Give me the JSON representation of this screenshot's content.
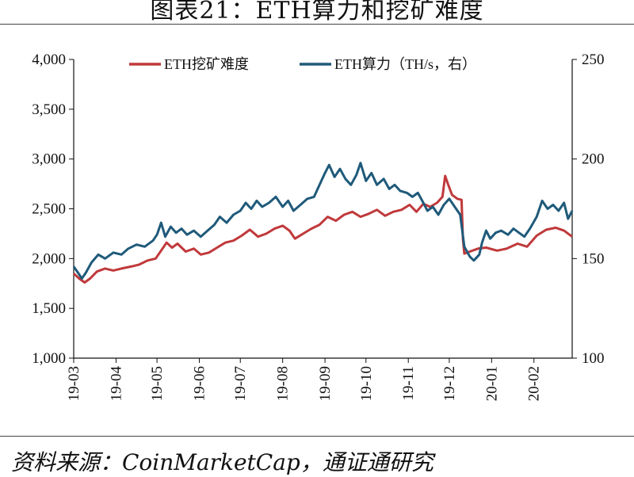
{
  "title": "图表21：ETH算力和挖矿难度",
  "source": "资料来源：CoinMarketCap，通证通研究",
  "chart_data": {
    "type": "line",
    "x_ticks": [
      "19-03",
      "19-04",
      "19-05",
      "19-06",
      "19-07",
      "19-08",
      "19-09",
      "19-10",
      "19-11",
      "19-12",
      "20-01",
      "20-02"
    ],
    "y_left": {
      "range": [
        1000,
        4000
      ],
      "ticks": [
        "1,000",
        "1,500",
        "2,000",
        "2,500",
        "3,000",
        "3,500",
        "4,000"
      ]
    },
    "y_right": {
      "range": [
        100,
        250
      ],
      "ticks": [
        "100",
        "150",
        "200",
        "250"
      ]
    },
    "legend_position": "top",
    "grid": false,
    "series": [
      {
        "name": "ETH挖矿难度",
        "axis": "left",
        "color": "#c0393b",
        "points": [
          [
            "19-03-01",
            1850
          ],
          [
            "19-03-05",
            1800
          ],
          [
            "19-03-09",
            1760
          ],
          [
            "19-03-13",
            1800
          ],
          [
            "19-03-18",
            1870
          ],
          [
            "19-03-24",
            1900
          ],
          [
            "19-03-30",
            1880
          ],
          [
            "19-04-05",
            1900
          ],
          [
            "19-04-12",
            1920
          ],
          [
            "19-04-18",
            1940
          ],
          [
            "19-04-24",
            1980
          ],
          [
            "19-04-30",
            2000
          ],
          [
            "19-05-04",
            2080
          ],
          [
            "19-05-08",
            2160
          ],
          [
            "19-05-12",
            2110
          ],
          [
            "19-05-16",
            2150
          ],
          [
            "19-05-22",
            2070
          ],
          [
            "19-05-28",
            2100
          ],
          [
            "19-06-02",
            2040
          ],
          [
            "19-06-08",
            2060
          ],
          [
            "19-06-14",
            2110
          ],
          [
            "19-06-20",
            2160
          ],
          [
            "19-06-26",
            2180
          ],
          [
            "19-07-02",
            2230
          ],
          [
            "19-07-08",
            2290
          ],
          [
            "19-07-14",
            2220
          ],
          [
            "19-07-20",
            2250
          ],
          [
            "19-07-26",
            2300
          ],
          [
            "19-08-01",
            2330
          ],
          [
            "19-08-06",
            2280
          ],
          [
            "19-08-10",
            2200
          ],
          [
            "19-08-16",
            2250
          ],
          [
            "19-08-22",
            2300
          ],
          [
            "19-08-28",
            2340
          ],
          [
            "19-09-03",
            2420
          ],
          [
            "19-09-09",
            2380
          ],
          [
            "19-09-15",
            2440
          ],
          [
            "19-09-21",
            2470
          ],
          [
            "19-09-27",
            2420
          ],
          [
            "19-10-03",
            2450
          ],
          [
            "19-10-09",
            2490
          ],
          [
            "19-10-15",
            2430
          ],
          [
            "19-10-21",
            2470
          ],
          [
            "19-10-27",
            2490
          ],
          [
            "19-11-02",
            2540
          ],
          [
            "19-11-07",
            2470
          ],
          [
            "19-11-12",
            2550
          ],
          [
            "19-11-17",
            2520
          ],
          [
            "19-11-22",
            2560
          ],
          [
            "19-11-26",
            2620
          ],
          [
            "19-11-28",
            2830
          ],
          [
            "19-11-30",
            2750
          ],
          [
            "19-12-03",
            2640
          ],
          [
            "19-12-07",
            2600
          ],
          [
            "19-12-10",
            2590
          ],
          [
            "19-12-11",
            2200
          ],
          [
            "19-12-12",
            2050
          ],
          [
            "19-12-16",
            2070
          ],
          [
            "19-12-22",
            2100
          ],
          [
            "19-12-28",
            2110
          ],
          [
            "20-01-05",
            2080
          ],
          [
            "20-01-12",
            2100
          ],
          [
            "20-01-20",
            2150
          ],
          [
            "20-01-27",
            2120
          ],
          [
            "20-02-03",
            2230
          ],
          [
            "20-02-10",
            2290
          ],
          [
            "20-02-17",
            2310
          ],
          [
            "20-02-23",
            2280
          ],
          [
            "20-02-29",
            2220
          ]
        ]
      },
      {
        "name": "ETH算力（TH/s，右）",
        "axis": "right",
        "color": "#1f5a7a",
        "points": [
          [
            "19-03-01",
            146
          ],
          [
            "19-03-04",
            143
          ],
          [
            "19-03-07",
            140
          ],
          [
            "19-03-10",
            143
          ],
          [
            "19-03-14",
            148
          ],
          [
            "19-03-19",
            152
          ],
          [
            "19-03-24",
            150
          ],
          [
            "19-03-30",
            153
          ],
          [
            "19-04-05",
            152
          ],
          [
            "19-04-10",
            155
          ],
          [
            "19-04-16",
            157
          ],
          [
            "19-04-22",
            156
          ],
          [
            "19-04-28",
            159
          ],
          [
            "19-05-01",
            162
          ],
          [
            "19-05-04",
            168
          ],
          [
            "19-05-07",
            161
          ],
          [
            "19-05-11",
            166
          ],
          [
            "19-05-15",
            163
          ],
          [
            "19-05-19",
            165
          ],
          [
            "19-05-23",
            162
          ],
          [
            "19-05-28",
            164
          ],
          [
            "19-06-02",
            161
          ],
          [
            "19-06-07",
            164
          ],
          [
            "19-06-12",
            167
          ],
          [
            "19-06-16",
            171
          ],
          [
            "19-06-21",
            168
          ],
          [
            "19-06-26",
            172
          ],
          [
            "19-07-01",
            174
          ],
          [
            "19-07-05",
            178
          ],
          [
            "19-07-09",
            175
          ],
          [
            "19-07-13",
            179
          ],
          [
            "19-07-17",
            176
          ],
          [
            "19-07-22",
            178
          ],
          [
            "19-07-27",
            181
          ],
          [
            "19-08-01",
            176
          ],
          [
            "19-08-05",
            179
          ],
          [
            "19-08-09",
            174
          ],
          [
            "19-08-14",
            177
          ],
          [
            "19-08-19",
            180
          ],
          [
            "19-08-24",
            181
          ],
          [
            "19-08-28",
            187
          ],
          [
            "19-09-01",
            193
          ],
          [
            "19-09-04",
            197
          ],
          [
            "19-09-08",
            191
          ],
          [
            "19-09-12",
            195
          ],
          [
            "19-09-16",
            190
          ],
          [
            "19-09-20",
            187
          ],
          [
            "19-09-24",
            192
          ],
          [
            "19-09-27",
            198
          ],
          [
            "19-10-01",
            189
          ],
          [
            "19-10-05",
            193
          ],
          [
            "19-10-09",
            187
          ],
          [
            "19-10-14",
            190
          ],
          [
            "19-10-18",
            185
          ],
          [
            "19-10-22",
            187
          ],
          [
            "19-10-26",
            184
          ],
          [
            "19-10-31",
            183
          ],
          [
            "19-11-04",
            181
          ],
          [
            "19-11-08",
            183
          ],
          [
            "19-11-12",
            178
          ],
          [
            "19-11-15",
            174
          ],
          [
            "19-11-19",
            176
          ],
          [
            "19-11-23",
            172
          ],
          [
            "19-11-27",
            177
          ],
          [
            "19-12-01",
            180
          ],
          [
            "19-12-05",
            176
          ],
          [
            "19-12-09",
            172
          ],
          [
            "19-12-12",
            156
          ],
          [
            "19-12-16",
            151
          ],
          [
            "19-12-19",
            149
          ],
          [
            "19-12-23",
            152
          ],
          [
            "19-12-25",
            158
          ],
          [
            "19-12-28",
            164
          ],
          [
            "19-12-31",
            160
          ],
          [
            "20-01-04",
            163
          ],
          [
            "20-01-08",
            164
          ],
          [
            "20-01-13",
            162
          ],
          [
            "20-01-17",
            165
          ],
          [
            "20-01-21",
            163
          ],
          [
            "20-01-25",
            161
          ],
          [
            "20-01-29",
            165
          ],
          [
            "20-02-03",
            171
          ],
          [
            "20-02-07",
            179
          ],
          [
            "20-02-11",
            175
          ],
          [
            "20-02-15",
            177
          ],
          [
            "20-02-19",
            174
          ],
          [
            "20-02-23",
            178
          ],
          [
            "20-02-26",
            170
          ],
          [
            "20-02-29",
            174
          ]
        ]
      }
    ]
  }
}
